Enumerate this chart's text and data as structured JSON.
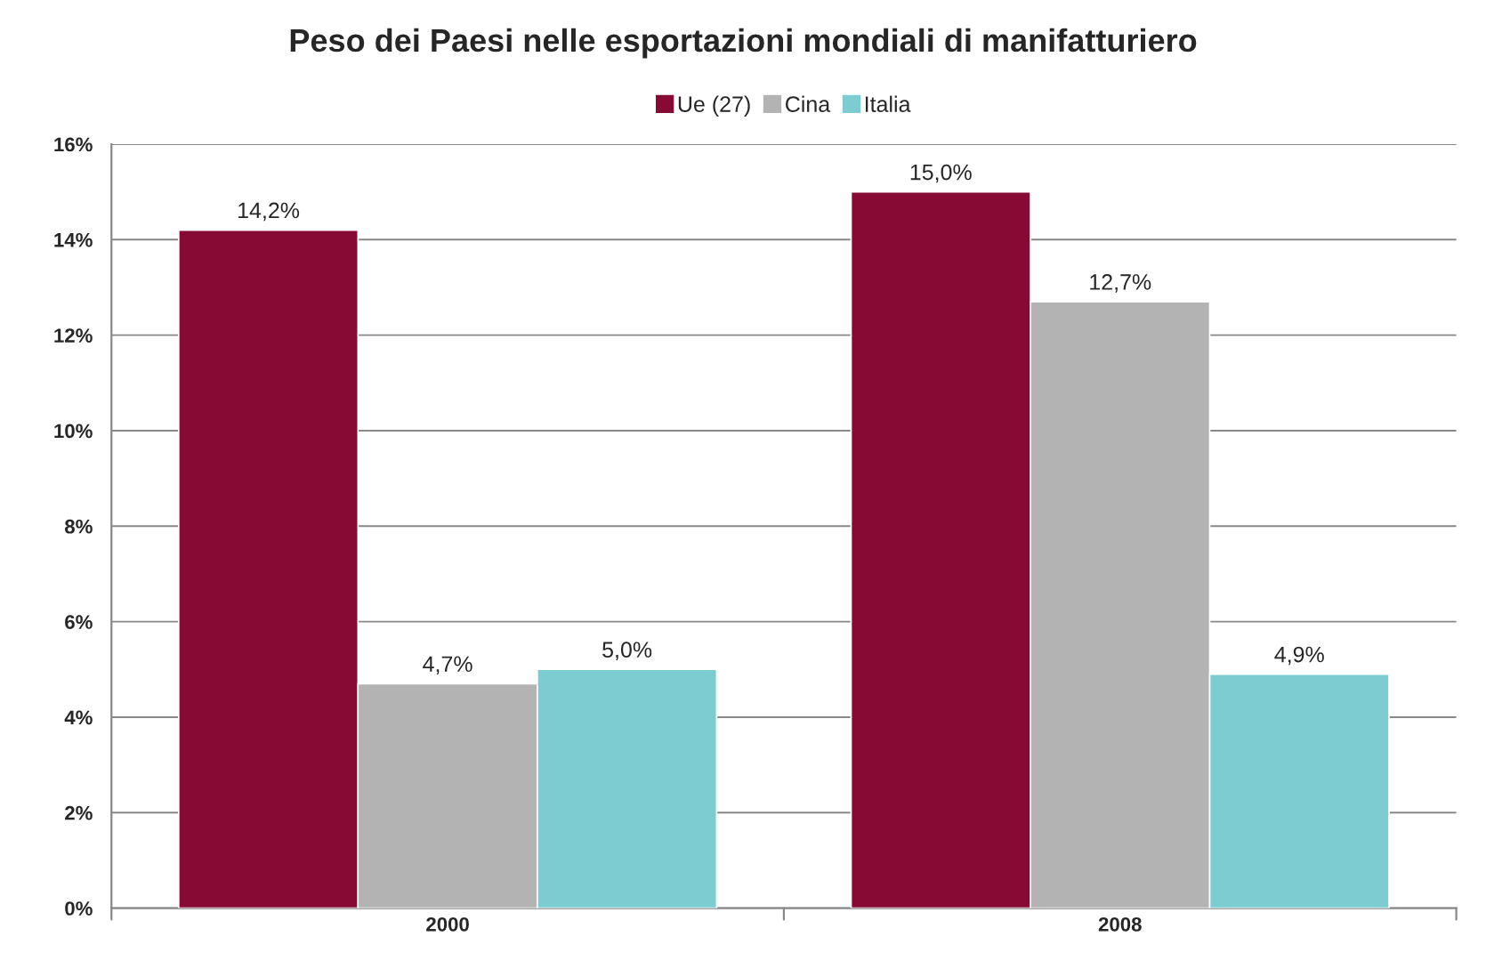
{
  "chart_data": {
    "type": "bar",
    "title": "Peso dei Paesi nelle esportazioni mondiali di manifatturiero",
    "categories": [
      "2000",
      "2008"
    ],
    "series": [
      {
        "name": "Ue (27)",
        "color": "#870a35",
        "values": [
          14.2,
          15.0
        ],
        "value_labels": [
          "14,2%",
          "15,0%"
        ]
      },
      {
        "name": "Cina",
        "color": "#b3b3b3",
        "values": [
          4.7,
          12.7
        ],
        "value_labels": [
          "4,7%",
          "12,7%"
        ]
      },
      {
        "name": "Italia",
        "color": "#7ccdd2",
        "values": [
          5.0,
          4.9
        ],
        "value_labels": [
          "5,0%",
          "4,9%"
        ]
      }
    ],
    "ylim": [
      0,
      16
    ],
    "yticks": [
      {
        "value": 0,
        "label": "0%"
      },
      {
        "value": 2,
        "label": "2%"
      },
      {
        "value": 4,
        "label": "4%"
      },
      {
        "value": 6,
        "label": "6%"
      },
      {
        "value": 8,
        "label": "8%"
      },
      {
        "value": 10,
        "label": "10%"
      },
      {
        "value": 12,
        "label": "12%"
      },
      {
        "value": 14,
        "label": "14%"
      },
      {
        "value": 16,
        "label": "16%"
      }
    ],
    "grid": "y",
    "legend": "top"
  }
}
